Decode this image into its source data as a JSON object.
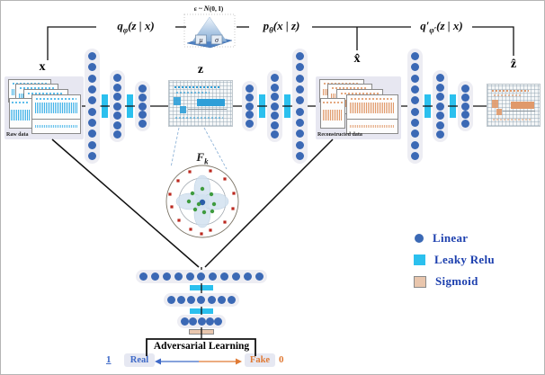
{
  "figure": {
    "colors": {
      "linear_dot": "#3b69b5",
      "leaky_relu": "#2bc0ee",
      "sigmoid": "#e9c6ad",
      "column_bg": "#ededf3",
      "panel_bg": "#e7e7f1",
      "raw_wave": "#3fb2e8",
      "recon_wave": "#e0996a",
      "legend_text": "#1c3fae",
      "real": "#3f6ac8",
      "fake": "#e07a35",
      "outlier": "#bb281e",
      "inlier": "#3f9b3f",
      "line": "#111111"
    },
    "formulas": {
      "encoder": {
        "base": "q",
        "sub": "φ",
        "args": "(z | x)"
      },
      "decoder": {
        "base": "p",
        "sub": "θ",
        "args": "(x | z)"
      },
      "encoder2": {
        "base": "q′",
        "sub": "φ′",
        "args": "(z | x)"
      },
      "noise": {
        "eps": "ε ~ ",
        "n": "N",
        "args": "(0, I)"
      }
    },
    "reparam": {
      "mu": "μ",
      "sigma": "σ"
    },
    "panels": {
      "x": {
        "label": "x",
        "caption": "Raw data"
      },
      "z": {
        "label": "z"
      },
      "x_hat": {
        "label": "x̂",
        "caption": "Reconstructed data"
      },
      "z_hat": {
        "label": "ẑ"
      }
    },
    "latent_space": {
      "label": "F",
      "sub": "k",
      "outliers": [
        [
          -14,
          -33
        ],
        [
          9,
          -34
        ],
        [
          -27,
          -23
        ],
        [
          25,
          -25
        ],
        [
          -36,
          -8
        ],
        [
          35,
          -9
        ],
        [
          -34,
          6
        ],
        [
          34,
          8
        ],
        [
          -26,
          21
        ],
        [
          25,
          23
        ],
        [
          -13,
          31
        ],
        [
          9,
          32
        ],
        [
          -1,
          36
        ]
      ],
      "inliers": [
        [
          -11,
          -9
        ],
        [
          0,
          -14
        ],
        [
          10,
          -8
        ],
        [
          -15,
          0
        ],
        [
          13,
          3
        ],
        [
          -8,
          9
        ],
        [
          2,
          12
        ],
        [
          11,
          11
        ],
        [
          -4,
          3
        ]
      ]
    },
    "networks": {
      "encoder_layers": [
        10,
        7,
        5
      ],
      "decoder_layers": [
        5,
        7,
        10
      ],
      "encoder2_layers": [
        10,
        7,
        5
      ],
      "discriminator_layers": [
        11,
        7,
        5
      ]
    },
    "adversarial": {
      "title": "Adversarial Learning",
      "real": "Real",
      "fake": "Fake",
      "real_value": "1",
      "fake_value": "0"
    },
    "legend": [
      {
        "label": "Linear"
      },
      {
        "label": "Leaky Relu"
      },
      {
        "label": "Sigmoid"
      }
    ]
  }
}
